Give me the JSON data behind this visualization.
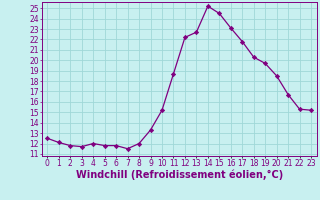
{
  "hours": [
    0,
    1,
    2,
    3,
    4,
    5,
    6,
    7,
    8,
    9,
    10,
    11,
    12,
    13,
    14,
    15,
    16,
    17,
    18,
    19,
    20,
    21,
    22,
    23
  ],
  "windchill": [
    12.5,
    12.1,
    11.8,
    11.7,
    12.0,
    11.8,
    11.8,
    11.5,
    12.0,
    13.3,
    15.2,
    18.7,
    22.2,
    22.7,
    25.2,
    24.5,
    23.1,
    21.8,
    20.3,
    19.7,
    18.5,
    16.7,
    15.3,
    15.2
  ],
  "line_color": "#800080",
  "marker": "D",
  "marker_size": 2.2,
  "bg_color": "#c8f0f0",
  "grid_color": "#a0d8d8",
  "xlabel": "Windchill (Refroidissement éolien,°C)",
  "xlabel_color": "#800080",
  "ylabel_ticks": [
    11,
    12,
    13,
    14,
    15,
    16,
    17,
    18,
    19,
    20,
    21,
    22,
    23,
    24,
    25
  ],
  "ylim": [
    10.8,
    25.6
  ],
  "xlim": [
    -0.5,
    23.5
  ],
  "tick_color": "#800080",
  "tick_fontsize": 5.5,
  "xlabel_fontsize": 7.0,
  "spine_color": "#800080",
  "linewidth": 0.9
}
